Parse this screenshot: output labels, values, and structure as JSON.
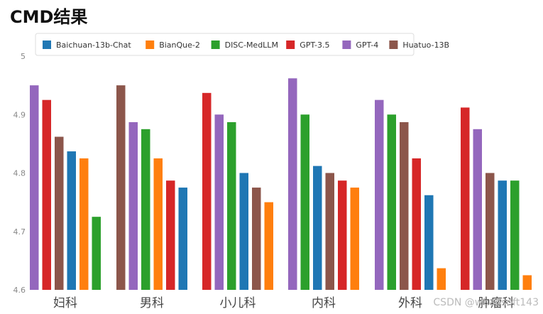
{
  "title": "CMD结果",
  "watermark": "CSDN @whaosoft143",
  "chart_data": {
    "type": "bar",
    "title": "CMD结果",
    "xlabel": "",
    "ylabel": "",
    "ylim": [
      4.6,
      5.0
    ],
    "yticks": [
      "4.6",
      "4.7",
      "4.8",
      "4.9",
      "5"
    ],
    "grid": false,
    "legend_position": "top",
    "colors": {
      "Baichuan-13b-Chat": "#1f77b4",
      "BianQue-2": "#ff7f0e",
      "DISC-MedLLM": "#2ca02c",
      "GPT-3.5": "#d62728",
      "GPT-4": "#9467bd",
      "Huatuo-13B": "#8c564b"
    },
    "legend": [
      "Baichuan-13b-Chat",
      "BianQue-2",
      "DISC-MedLLM",
      "GPT-3.5",
      "GPT-4",
      "Huatuo-13B"
    ],
    "groups": [
      {
        "category": "妇科",
        "bars": [
          {
            "series": "GPT-4",
            "value": 4.95
          },
          {
            "series": "GPT-3.5",
            "value": 4.925
          },
          {
            "series": "Huatuo-13B",
            "value": 4.862
          },
          {
            "series": "Baichuan-13b-Chat",
            "value": 4.837
          },
          {
            "series": "BianQue-2",
            "value": 4.825
          },
          {
            "series": "DISC-MedLLM",
            "value": 4.725
          }
        ]
      },
      {
        "category": "男科",
        "bars": [
          {
            "series": "Huatuo-13B",
            "value": 4.95
          },
          {
            "series": "GPT-4",
            "value": 4.887
          },
          {
            "series": "DISC-MedLLM",
            "value": 4.875
          },
          {
            "series": "BianQue-2",
            "value": 4.825
          },
          {
            "series": "GPT-3.5",
            "value": 4.787
          },
          {
            "series": "Baichuan-13b-Chat",
            "value": 4.775
          }
        ]
      },
      {
        "category": "小儿科",
        "bars": [
          {
            "series": "GPT-3.5",
            "value": 4.937
          },
          {
            "series": "GPT-4",
            "value": 4.9
          },
          {
            "series": "DISC-MedLLM",
            "value": 4.887
          },
          {
            "series": "Baichuan-13b-Chat",
            "value": 4.8
          },
          {
            "series": "Huatuo-13B",
            "value": 4.775
          },
          {
            "series": "BianQue-2",
            "value": 4.75
          }
        ]
      },
      {
        "category": "内科",
        "bars": [
          {
            "series": "GPT-4",
            "value": 4.962
          },
          {
            "series": "DISC-MedLLM",
            "value": 4.9
          },
          {
            "series": "Baichuan-13b-Chat",
            "value": 4.812
          },
          {
            "series": "Huatuo-13B",
            "value": 4.8
          },
          {
            "series": "GPT-3.5",
            "value": 4.787
          },
          {
            "series": "BianQue-2",
            "value": 4.775
          }
        ]
      },
      {
        "category": "外科",
        "bars": [
          {
            "series": "GPT-4",
            "value": 4.925
          },
          {
            "series": "DISC-MedLLM",
            "value": 4.9
          },
          {
            "series": "Huatuo-13B",
            "value": 4.887
          },
          {
            "series": "GPT-3.5",
            "value": 4.825
          },
          {
            "series": "Baichuan-13b-Chat",
            "value": 4.762
          },
          {
            "series": "BianQue-2",
            "value": 4.637
          }
        ]
      },
      {
        "category": "肿瘤科",
        "bars": [
          {
            "series": "GPT-3.5",
            "value": 4.912
          },
          {
            "series": "GPT-4",
            "value": 4.875
          },
          {
            "series": "Huatuo-13B",
            "value": 4.8
          },
          {
            "series": "Baichuan-13b-Chat",
            "value": 4.787
          },
          {
            "series": "DISC-MedLLM",
            "value": 4.787
          },
          {
            "series": "BianQue-2",
            "value": 4.625
          }
        ]
      }
    ]
  }
}
